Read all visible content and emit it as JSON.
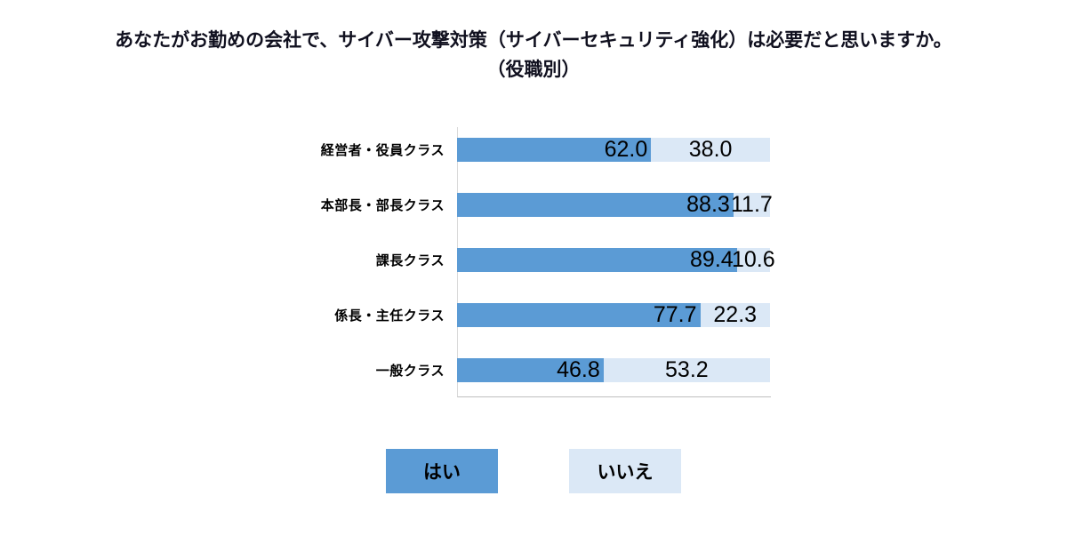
{
  "title": {
    "line1": "あなたがお勤めの会社で、サイバー攻撃対策（サイバーセキュリティ強化）は必要だと思いますか。",
    "line2": "（役職別）"
  },
  "chart_data": {
    "type": "bar",
    "orientation": "horizontal",
    "stacked": true,
    "unit": "%",
    "xlim": [
      0,
      100
    ],
    "grid": false,
    "legend_position": "bottom",
    "categories": [
      "経営者・役員クラス",
      "本部長・部長クラス",
      "課長クラス",
      "係長・主任クラス",
      "一般クラス"
    ],
    "series": [
      {
        "name": "はい",
        "color": "#5b9bd5",
        "values": [
          62.0,
          88.3,
          89.4,
          77.7,
          46.8
        ],
        "labels": [
          "62.0",
          "88.3",
          "89.4",
          "77.7",
          "46.8"
        ]
      },
      {
        "name": "いいえ",
        "color": "#dbe8f6",
        "values": [
          38.0,
          11.7,
          10.6,
          22.3,
          53.2
        ],
        "labels": [
          "38.0",
          "11.7",
          "10.6",
          "22.3",
          "53.2"
        ]
      }
    ]
  }
}
